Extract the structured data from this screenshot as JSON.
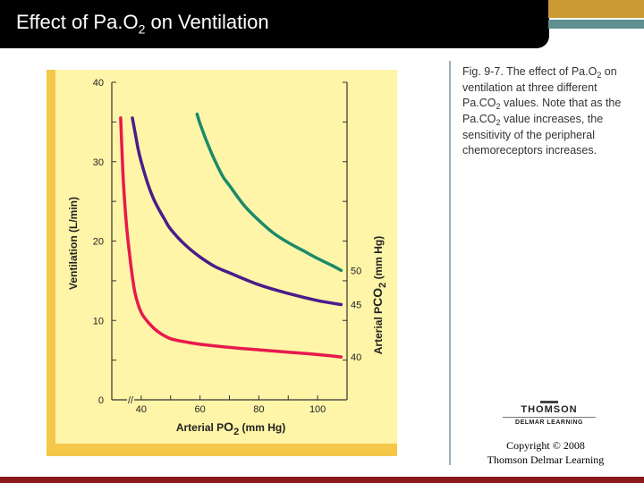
{
  "header": {
    "title_before": "Effect of Pa.O",
    "title_sub": "2",
    "title_after": " on Ventilation"
  },
  "caption": {
    "part1": "Fig. 9-7.  The effect of Pa.O",
    "sub1": "2",
    "part2": " on ventilation at three different Pa.CO",
    "sub2": "2",
    "part3": " values. Note that as the Pa.CO",
    "sub3": "2",
    "part4": " value increases, the sensitivity of the peripheral chemoreceptors increases."
  },
  "logo": {
    "main": "THOMSON",
    "sub": "DELMAR LEARNING"
  },
  "copyright": {
    "line1": "Copyright © 2008",
    "line2": "Thomson Delmar Learning"
  },
  "colors": {
    "header_bg": "#000000",
    "accent_gold": "#cc9933",
    "accent_teal": "#5f8f8f",
    "panel": "#f5c84a",
    "plot": "#fff5a8",
    "bottom_bar": "#8b1a1a"
  },
  "chart_data": {
    "type": "line",
    "xlabel": {
      "prefix": "Arterial P",
      "main": "O",
      "sub": "2",
      "suffix": " (mm Hg)"
    },
    "ylabel": "Ventilation (L/min)",
    "right_label": {
      "prefix": "Arterial P",
      "main": "CO",
      "sub": "2",
      "suffix": " (mm Hg)"
    },
    "xlim": [
      30,
      110
    ],
    "ylim": [
      0,
      40
    ],
    "x_ticks": [
      40,
      60,
      80,
      100
    ],
    "y_ticks": [
      0,
      10,
      20,
      30,
      40
    ],
    "x_break": "//",
    "grid": false,
    "series": [
      {
        "name": "40",
        "color": "#e8194c",
        "x": [
          33,
          33.5,
          34,
          35,
          36,
          37,
          38,
          40,
          43,
          46,
          50,
          55,
          60,
          70,
          80,
          90,
          100,
          108
        ],
        "y": [
          35.5,
          31,
          27,
          22,
          18.5,
          15.5,
          13.3,
          11,
          9.5,
          8.5,
          7.7,
          7.3,
          7,
          6.6,
          6.3,
          6.0,
          5.7,
          5.4
        ]
      },
      {
        "name": "45",
        "color": "#4b1b8a",
        "x": [
          37,
          38,
          39,
          40,
          42,
          44,
          46,
          48,
          50,
          55,
          60,
          65,
          70,
          80,
          90,
          100,
          108
        ],
        "y": [
          35.5,
          33.5,
          31.5,
          30,
          27.5,
          25.5,
          24,
          22.7,
          21.5,
          19.5,
          18,
          16.8,
          16,
          14.5,
          13.4,
          12.5,
          12
        ]
      },
      {
        "name": "50",
        "color": "#1b8a6b",
        "x": [
          59,
          60,
          62,
          64,
          66,
          68,
          70,
          75,
          80,
          85,
          90,
          95,
          100,
          105,
          108
        ],
        "y": [
          36,
          34.8,
          32.8,
          31,
          29.4,
          28,
          27,
          24.5,
          22.6,
          21,
          19.8,
          18.8,
          17.8,
          16.9,
          16.3
        ]
      }
    ]
  }
}
